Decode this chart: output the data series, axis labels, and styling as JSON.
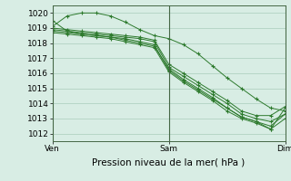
{
  "xlabel": "Pression niveau de la mer( hPa )",
  "background_color": "#d8ede4",
  "plot_bg_color": "#d8ede4",
  "grid_color": "#aaccbb",
  "line_color": "#2d7a2d",
  "marker": "+",
  "xlim": [
    0,
    48
  ],
  "ylim": [
    1011.5,
    1020.5
  ],
  "yticks": [
    1012,
    1013,
    1014,
    1015,
    1016,
    1017,
    1018,
    1019,
    1020
  ],
  "xtick_positions": [
    0,
    24,
    48
  ],
  "xtick_labels": [
    "Ven",
    "Sam",
    "Dim"
  ],
  "lines": [
    [
      0,
      1019.1,
      3,
      1019.8,
      6,
      1020.0,
      9,
      1020.0,
      12,
      1019.8,
      15,
      1019.4,
      18,
      1018.9,
      21,
      1018.5,
      24,
      1018.3,
      27,
      1017.9,
      30,
      1017.3,
      33,
      1016.5,
      36,
      1015.7,
      39,
      1015.0,
      42,
      1014.3,
      45,
      1013.7,
      48,
      1013.5
    ],
    [
      0,
      1019.0,
      3,
      1018.9,
      6,
      1018.8,
      9,
      1018.7,
      12,
      1018.6,
      15,
      1018.5,
      18,
      1018.4,
      21,
      1018.2,
      24,
      1016.6,
      27,
      1016.0,
      30,
      1015.4,
      33,
      1014.8,
      36,
      1014.2,
      39,
      1013.5,
      42,
      1013.2,
      45,
      1013.2,
      48,
      1013.8
    ],
    [
      0,
      1018.9,
      3,
      1018.8,
      6,
      1018.7,
      9,
      1018.6,
      12,
      1018.5,
      15,
      1018.4,
      18,
      1018.3,
      21,
      1018.1,
      24,
      1016.4,
      27,
      1015.8,
      30,
      1015.2,
      33,
      1014.6,
      36,
      1014.0,
      39,
      1013.3,
      42,
      1013.0,
      45,
      1012.8,
      48,
      1013.3
    ],
    [
      0,
      1018.8,
      3,
      1018.7,
      6,
      1018.6,
      9,
      1018.5,
      12,
      1018.4,
      15,
      1018.2,
      18,
      1018.0,
      21,
      1017.8,
      24,
      1016.3,
      27,
      1015.6,
      30,
      1015.0,
      33,
      1014.4,
      36,
      1013.7,
      39,
      1013.1,
      42,
      1012.8,
      45,
      1012.5,
      48,
      1013.3
    ],
    [
      0,
      1018.7,
      3,
      1018.6,
      6,
      1018.5,
      9,
      1018.4,
      12,
      1018.3,
      15,
      1018.1,
      18,
      1017.9,
      21,
      1017.7,
      24,
      1016.1,
      27,
      1015.4,
      30,
      1014.8,
      33,
      1014.2,
      36,
      1013.5,
      39,
      1013.0,
      42,
      1012.7,
      45,
      1012.3,
      48,
      1013.7
    ],
    [
      0,
      1019.5,
      3,
      1018.8,
      6,
      1018.6,
      9,
      1018.5,
      12,
      1018.4,
      15,
      1018.3,
      18,
      1018.1,
      21,
      1017.9,
      24,
      1016.2,
      27,
      1015.5,
      30,
      1014.9,
      33,
      1014.3,
      36,
      1013.7,
      39,
      1013.1,
      42,
      1012.8,
      45,
      1012.3,
      48,
      1013.0
    ]
  ]
}
